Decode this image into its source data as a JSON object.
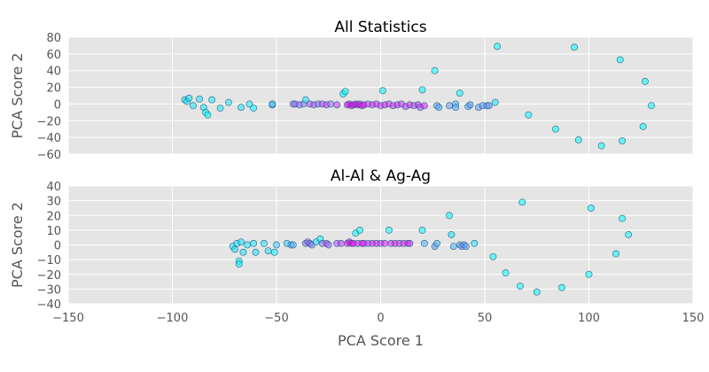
{
  "chart_data": [
    {
      "type": "scatter",
      "title": "All Statistics",
      "ylabel": "PCA Score 2",
      "xlim": [
        -150,
        150
      ],
      "ylim": [
        -60,
        80
      ],
      "yticks": [
        -60,
        -40,
        -20,
        0,
        20,
        40,
        60,
        80
      ],
      "grid": true,
      "points": [
        {
          "x": -94,
          "y": 5,
          "c": 0.1
        },
        {
          "x": -93,
          "y": 3,
          "c": 0.1
        },
        {
          "x": -92,
          "y": 7,
          "c": 0.1
        },
        {
          "x": -90,
          "y": -2,
          "c": 0.1
        },
        {
          "x": -87,
          "y": 6,
          "c": 0.1
        },
        {
          "x": -85,
          "y": -4,
          "c": 0.1
        },
        {
          "x": -84,
          "y": -10,
          "c": 0.0
        },
        {
          "x": -83,
          "y": -13,
          "c": 0.0
        },
        {
          "x": -81,
          "y": 5,
          "c": 0.1
        },
        {
          "x": -77,
          "y": -5,
          "c": 0.1
        },
        {
          "x": -73,
          "y": 2,
          "c": 0.1
        },
        {
          "x": -67,
          "y": -4,
          "c": 0.1
        },
        {
          "x": -63,
          "y": 0,
          "c": 0.1
        },
        {
          "x": -61,
          "y": -5,
          "c": 0.0
        },
        {
          "x": -52,
          "y": -1,
          "c": 0.2
        },
        {
          "x": -52,
          "y": 0,
          "c": 0.3
        },
        {
          "x": -42,
          "y": 0,
          "c": 0.6
        },
        {
          "x": -41,
          "y": 0,
          "c": 0.6
        },
        {
          "x": -39,
          "y": -1,
          "c": 0.6
        },
        {
          "x": -37,
          "y": 0,
          "c": 0.5
        },
        {
          "x": -36,
          "y": 5,
          "c": 0.1
        },
        {
          "x": -34,
          "y": 0,
          "c": 0.7
        },
        {
          "x": -32,
          "y": -1,
          "c": 0.7
        },
        {
          "x": -30,
          "y": 0,
          "c": 0.6
        },
        {
          "x": -28,
          "y": 0,
          "c": 0.7
        },
        {
          "x": -26,
          "y": -1,
          "c": 0.8
        },
        {
          "x": -24,
          "y": 0,
          "c": 0.6
        },
        {
          "x": -21,
          "y": -1,
          "c": 0.8
        },
        {
          "x": -18,
          "y": 12,
          "c": 0.0
        },
        {
          "x": -17,
          "y": 15,
          "c": 0.0
        },
        {
          "x": -16,
          "y": -1,
          "c": 1.0
        },
        {
          "x": -15,
          "y": 0,
          "c": 1.0
        },
        {
          "x": -14,
          "y": -2,
          "c": 1.0
        },
        {
          "x": -13,
          "y": -1,
          "c": 1.0
        },
        {
          "x": -12,
          "y": 0,
          "c": 0.9
        },
        {
          "x": -11,
          "y": -1,
          "c": 1.0
        },
        {
          "x": -10,
          "y": 0,
          "c": 0.9
        },
        {
          "x": -9,
          "y": -2,
          "c": 0.9
        },
        {
          "x": -8,
          "y": -1,
          "c": 1.0
        },
        {
          "x": -6,
          "y": 0,
          "c": 0.8
        },
        {
          "x": -4,
          "y": -1,
          "c": 0.9
        },
        {
          "x": -2,
          "y": 0,
          "c": 0.9
        },
        {
          "x": 0,
          "y": -2,
          "c": 0.8
        },
        {
          "x": 1,
          "y": 16,
          "c": 0.0
        },
        {
          "x": 2,
          "y": -1,
          "c": 0.9
        },
        {
          "x": 4,
          "y": 0,
          "c": 0.9
        },
        {
          "x": 6,
          "y": -2,
          "c": 0.8
        },
        {
          "x": 8,
          "y": -1,
          "c": 0.9
        },
        {
          "x": 10,
          "y": 0,
          "c": 0.8
        },
        {
          "x": 12,
          "y": -3,
          "c": 0.8
        },
        {
          "x": 14,
          "y": -1,
          "c": 0.9
        },
        {
          "x": 16,
          "y": -2,
          "c": 0.7
        },
        {
          "x": 18,
          "y": -1,
          "c": 0.9
        },
        {
          "x": 19,
          "y": -4,
          "c": 0.7
        },
        {
          "x": 20,
          "y": 17,
          "c": 0.0
        },
        {
          "x": 21,
          "y": -2,
          "c": 0.9
        },
        {
          "x": 26,
          "y": 40,
          "c": 0.0
        },
        {
          "x": 27,
          "y": -2,
          "c": 0.4
        },
        {
          "x": 28,
          "y": -4,
          "c": 0.3
        },
        {
          "x": 33,
          "y": -2,
          "c": 0.4
        },
        {
          "x": 36,
          "y": 0,
          "c": 0.3
        },
        {
          "x": 36,
          "y": -4,
          "c": 0.3
        },
        {
          "x": 38,
          "y": 13,
          "c": 0.0
        },
        {
          "x": 42,
          "y": -3,
          "c": 0.3
        },
        {
          "x": 43,
          "y": -1,
          "c": 0.4
        },
        {
          "x": 47,
          "y": -4,
          "c": 0.4
        },
        {
          "x": 49,
          "y": -2,
          "c": 0.4
        },
        {
          "x": 51,
          "y": -2,
          "c": 0.4
        },
        {
          "x": 52,
          "y": -2,
          "c": 0.4
        },
        {
          "x": 55,
          "y": 2,
          "c": 0.1
        },
        {
          "x": 56,
          "y": 69,
          "c": 0.0
        },
        {
          "x": 71,
          "y": -13,
          "c": 0.0
        },
        {
          "x": 84,
          "y": -30,
          "c": 0.0
        },
        {
          "x": 93,
          "y": 68,
          "c": 0.0
        },
        {
          "x": 95,
          "y": -43,
          "c": 0.0
        },
        {
          "x": 106,
          "y": -50,
          "c": 0.0
        },
        {
          "x": 115,
          "y": 53,
          "c": 0.0
        },
        {
          "x": 116,
          "y": -44,
          "c": 0.0
        },
        {
          "x": 126,
          "y": -27,
          "c": 0.0
        },
        {
          "x": 127,
          "y": 27,
          "c": 0.0
        },
        {
          "x": 130,
          "y": -2,
          "c": 0.0
        }
      ]
    },
    {
      "type": "scatter",
      "title": "Al-Al & Ag-Ag",
      "xlabel": "PCA Score 1",
      "ylabel": "PCA Score 2",
      "xlim": [
        -150,
        150
      ],
      "ylim": [
        -40,
        40
      ],
      "xticks": [
        -150,
        -100,
        -50,
        0,
        50,
        100,
        150
      ],
      "yticks": [
        -40,
        -30,
        -20,
        -10,
        0,
        10,
        20,
        30,
        40
      ],
      "grid": true,
      "points": [
        {
          "x": -71,
          "y": -1,
          "c": 0.1
        },
        {
          "x": -70,
          "y": -3,
          "c": 0.1
        },
        {
          "x": -69,
          "y": 1,
          "c": 0.1
        },
        {
          "x": -68,
          "y": -11,
          "c": 0.0
        },
        {
          "x": -68,
          "y": -13,
          "c": 0.0
        },
        {
          "x": -67,
          "y": 2,
          "c": 0.1
        },
        {
          "x": -66,
          "y": -5,
          "c": 0.1
        },
        {
          "x": -64,
          "y": 0,
          "c": 0.1
        },
        {
          "x": -61,
          "y": 1,
          "c": 0.1
        },
        {
          "x": -60,
          "y": -5,
          "c": 0.1
        },
        {
          "x": -56,
          "y": 1,
          "c": 0.1
        },
        {
          "x": -54,
          "y": -4,
          "c": 0.1
        },
        {
          "x": -51,
          "y": -5,
          "c": 0.0
        },
        {
          "x": -50,
          "y": 0,
          "c": 0.2
        },
        {
          "x": -45,
          "y": 1,
          "c": 0.2
        },
        {
          "x": -43,
          "y": 0,
          "c": 0.3
        },
        {
          "x": -42,
          "y": 0,
          "c": 0.3
        },
        {
          "x": -36,
          "y": 1,
          "c": 0.6
        },
        {
          "x": -35,
          "y": 2,
          "c": 0.6
        },
        {
          "x": -34,
          "y": 1,
          "c": 0.6
        },
        {
          "x": -33,
          "y": 0,
          "c": 0.5
        },
        {
          "x": -31,
          "y": 2,
          "c": 0.1
        },
        {
          "x": -29,
          "y": 4,
          "c": 0.0
        },
        {
          "x": -28,
          "y": 1,
          "c": 0.6
        },
        {
          "x": -26,
          "y": 1,
          "c": 0.7
        },
        {
          "x": -25,
          "y": 0,
          "c": 0.6
        },
        {
          "x": -21,
          "y": 1,
          "c": 0.7
        },
        {
          "x": -19,
          "y": 1,
          "c": 0.8
        },
        {
          "x": -16,
          "y": 1,
          "c": 1.0
        },
        {
          "x": -15,
          "y": 2,
          "c": 1.0
        },
        {
          "x": -14,
          "y": 1,
          "c": 1.0
        },
        {
          "x": -13,
          "y": 1,
          "c": 1.0
        },
        {
          "x": -12,
          "y": 8,
          "c": 0.0
        },
        {
          "x": -11,
          "y": 1,
          "c": 0.9
        },
        {
          "x": -10,
          "y": 10,
          "c": 0.0
        },
        {
          "x": -9,
          "y": 1,
          "c": 0.9
        },
        {
          "x": -8,
          "y": 1,
          "c": 1.0
        },
        {
          "x": -6,
          "y": 1,
          "c": 0.8
        },
        {
          "x": -4,
          "y": 1,
          "c": 0.9
        },
        {
          "x": -2,
          "y": 1,
          "c": 0.9
        },
        {
          "x": 0,
          "y": 1,
          "c": 0.8
        },
        {
          "x": 2,
          "y": 1,
          "c": 0.9
        },
        {
          "x": 4,
          "y": 10,
          "c": 0.0
        },
        {
          "x": 5,
          "y": 1,
          "c": 0.9
        },
        {
          "x": 7,
          "y": 1,
          "c": 0.9
        },
        {
          "x": 9,
          "y": 1,
          "c": 0.8
        },
        {
          "x": 11,
          "y": 1,
          "c": 0.9
        },
        {
          "x": 13,
          "y": 1,
          "c": 0.9
        },
        {
          "x": 14,
          "y": 1,
          "c": 0.8
        },
        {
          "x": 20,
          "y": 10,
          "c": 0.0
        },
        {
          "x": 21,
          "y": 1,
          "c": 0.3
        },
        {
          "x": 26,
          "y": -1,
          "c": 0.4
        },
        {
          "x": 27,
          "y": 1,
          "c": 0.3
        },
        {
          "x": 33,
          "y": 20,
          "c": 0.0
        },
        {
          "x": 34,
          "y": 7,
          "c": 0.1
        },
        {
          "x": 35,
          "y": -1,
          "c": 0.3
        },
        {
          "x": 38,
          "y": 0,
          "c": 0.4
        },
        {
          "x": 39,
          "y": -1,
          "c": 0.4
        },
        {
          "x": 40,
          "y": 0,
          "c": 0.4
        },
        {
          "x": 41,
          "y": -1,
          "c": 0.4
        },
        {
          "x": 45,
          "y": 1,
          "c": 0.1
        },
        {
          "x": 54,
          "y": -8,
          "c": 0.0
        },
        {
          "x": 60,
          "y": -19,
          "c": 0.0
        },
        {
          "x": 67,
          "y": -28,
          "c": 0.0
        },
        {
          "x": 68,
          "y": 29,
          "c": 0.0
        },
        {
          "x": 75,
          "y": -32,
          "c": 0.0
        },
        {
          "x": 87,
          "y": -29,
          "c": 0.0
        },
        {
          "x": 100,
          "y": -20,
          "c": 0.0
        },
        {
          "x": 101,
          "y": 25,
          "c": 0.0
        },
        {
          "x": 113,
          "y": -6,
          "c": 0.0
        },
        {
          "x": 116,
          "y": 18,
          "c": 0.0
        },
        {
          "x": 119,
          "y": 7,
          "c": 0.0
        }
      ]
    }
  ],
  "colors": {
    "plot_bg": "#e5e5e5",
    "grid": "#ffffff",
    "marker_edge": "#1a5a7a",
    "cmap_start": "#00ffff",
    "cmap_end": "#ff00ff"
  }
}
